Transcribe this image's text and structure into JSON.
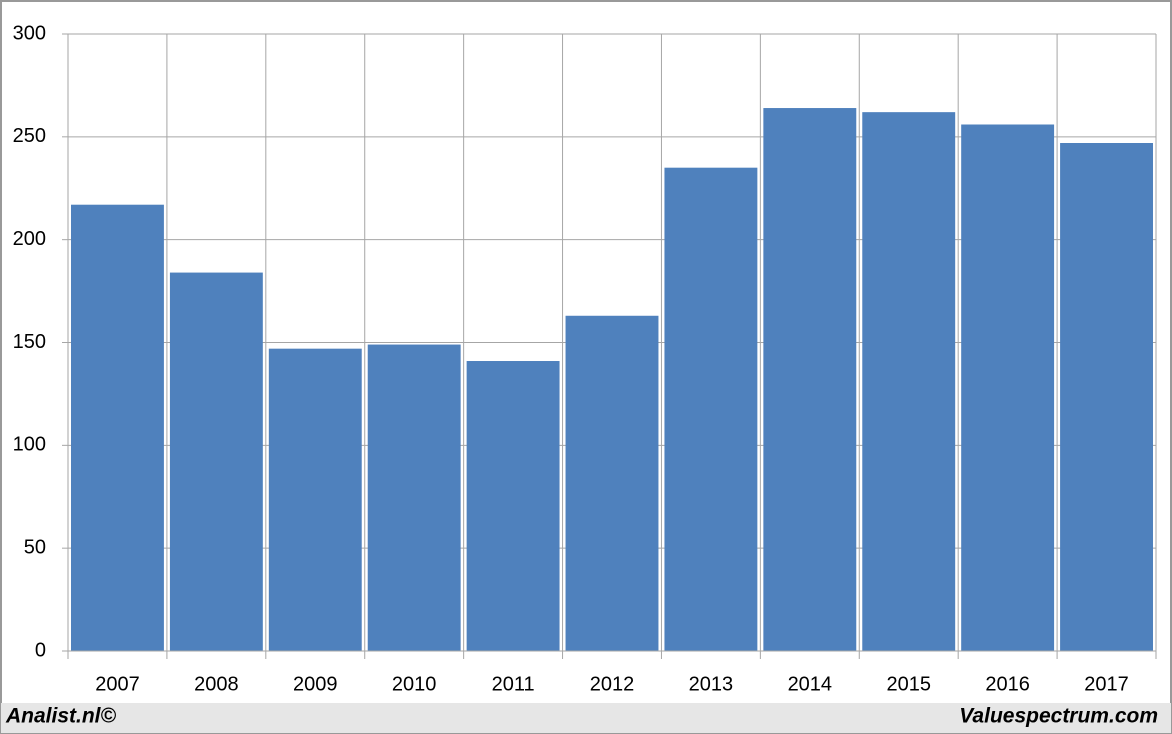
{
  "chart_data": {
    "type": "bar",
    "categories": [
      "2007",
      "2008",
      "2009",
      "2010",
      "2011",
      "2012",
      "2013",
      "2014",
      "2015",
      "2016",
      "2017"
    ],
    "values": [
      217,
      184,
      147,
      149,
      141,
      163,
      235,
      264,
      262,
      256,
      247
    ],
    "color": "#4f81bd",
    "ylim": [
      0,
      300
    ],
    "yticks": [
      0,
      50,
      100,
      150,
      200,
      250,
      300
    ],
    "grid": true,
    "annotations": [
      "Analist.nl©",
      "Valuespectrum.com"
    ]
  }
}
